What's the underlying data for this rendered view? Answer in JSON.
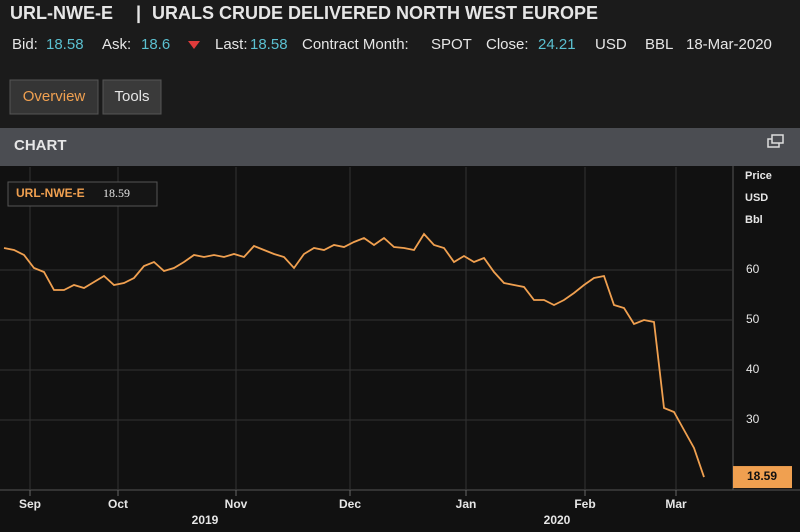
{
  "header": {
    "ric": "URL-NWE-E",
    "separator": "|",
    "title": "URALS CRUDE DELIVERED NORTH WEST EUROPE",
    "quote": [
      {
        "label": "Bid:",
        "value": "18.58"
      },
      {
        "label": "Ask:",
        "value": "18.6"
      },
      {
        "label": "Last:",
        "value": "18.58"
      },
      {
        "label": "Contract Month:",
        "value": "SPOT"
      },
      {
        "label": "Close:",
        "value": "24.21"
      }
    ],
    "currency": "USD",
    "unit": "BBL",
    "date": "18-Mar-2020"
  },
  "tabs": [
    "Overview",
    "Tools"
  ],
  "panel_title": "CHART",
  "chart_data": {
    "type": "line",
    "axis_title": [
      "Price",
      "USD",
      "Bbl"
    ],
    "series": [
      {
        "name": "URL-NWE-E",
        "color": "#f0a050",
        "values": [
          64.4,
          64,
          63,
          60.4,
          59.6,
          56,
          56,
          57,
          56.4,
          57.6,
          58.8,
          57,
          57.4,
          58.4,
          60.8,
          61.6,
          59.8,
          60.4,
          61.6,
          63,
          62.6,
          63,
          62.6,
          63.2,
          62.6,
          64.8,
          64,
          63.2,
          62.6,
          60.4,
          63.2,
          64.4,
          64,
          65,
          64.6,
          65.6,
          66.4,
          65,
          66.4,
          64.6,
          64.4,
          64,
          67.2,
          65,
          64.4,
          61.6,
          62.8,
          61.6,
          62.4,
          59.6,
          57.4,
          57,
          56.6,
          54,
          54,
          53,
          54,
          55.4,
          57,
          58.4,
          58.8,
          53,
          52.4,
          49.2,
          50,
          49.6,
          32.4,
          31.6,
          28,
          24.4,
          18.59
        ]
      }
    ],
    "xlim": [
      0,
      72.9
    ],
    "xticks": [
      {
        "value": 2.6,
        "label": "Sep"
      },
      {
        "value": 11.4,
        "label": "Oct"
      },
      {
        "value": 23.2,
        "label": "Nov"
      },
      {
        "value": 34.6,
        "label": "Dec"
      },
      {
        "value": 46.2,
        "label": "Jan"
      },
      {
        "value": 58.1,
        "label": "Feb"
      },
      {
        "value": 67.2,
        "label": "Mar"
      }
    ],
    "xyears": [
      {
        "value": 20.1,
        "label": "2019"
      },
      {
        "value": 55.3,
        "label": "2020"
      }
    ],
    "ylim": [
      16,
      80.6
    ],
    "yticks": [
      30,
      40,
      50,
      60
    ],
    "grid": true
  }
}
